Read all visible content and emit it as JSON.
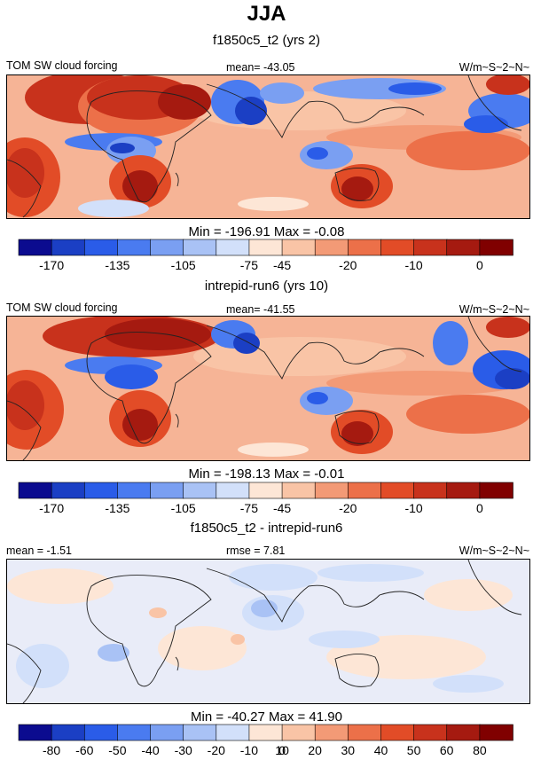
{
  "title": "JJA",
  "panels": [
    {
      "id": "p1",
      "title": "f1850c5_t2 (yrs 2)",
      "left_label": "TOM SW cloud forcing",
      "center_label": "mean= -43.05",
      "right_label": "W/m~S~2~N~",
      "stats": "Min = -196.91 Max =  -0.08",
      "colorbar_labels": [
        "-170",
        "-135",
        "-105",
        "-75",
        "-45",
        "-20",
        "-10",
        "0"
      ]
    },
    {
      "id": "p2",
      "title": "intrepid-run6 (yrs 10)",
      "left_label": "TOM SW cloud forcing",
      "center_label": "mean= -41.55",
      "right_label": "W/m~S~2~N~",
      "stats": "Min = -198.13 Max =  -0.01",
      "colorbar_labels": [
        "-170",
        "-135",
        "-105",
        "-75",
        "-45",
        "-20",
        "-10",
        "0"
      ]
    },
    {
      "id": "p3",
      "title": "f1850c5_t2 - intrepid-run6",
      "left_label": "mean =  -1.51",
      "center_label": "rmse =  7.81",
      "right_label": "W/m~S~2~N~",
      "stats": "Min = -40.27 Max =  41.90",
      "colorbar_labels": [
        "-80",
        "-60",
        "-50",
        "-40",
        "-30",
        "-20",
        "-10",
        "0",
        "10",
        "20",
        "30",
        "40",
        "50",
        "60",
        "80"
      ]
    }
  ],
  "chart_data": {
    "type": "heatmap",
    "colors": [
      "#0b0b8f",
      "#1b3fc4",
      "#2a5ce8",
      "#4a7bf0",
      "#7a9ff2",
      "#a9c2f5",
      "#d2e0fa",
      "#fde6d6",
      "#f9c4a6",
      "#f39a76",
      "#ec7049",
      "#e24c27",
      "#c8321c",
      "#a51a10",
      "#800000"
    ]
  }
}
